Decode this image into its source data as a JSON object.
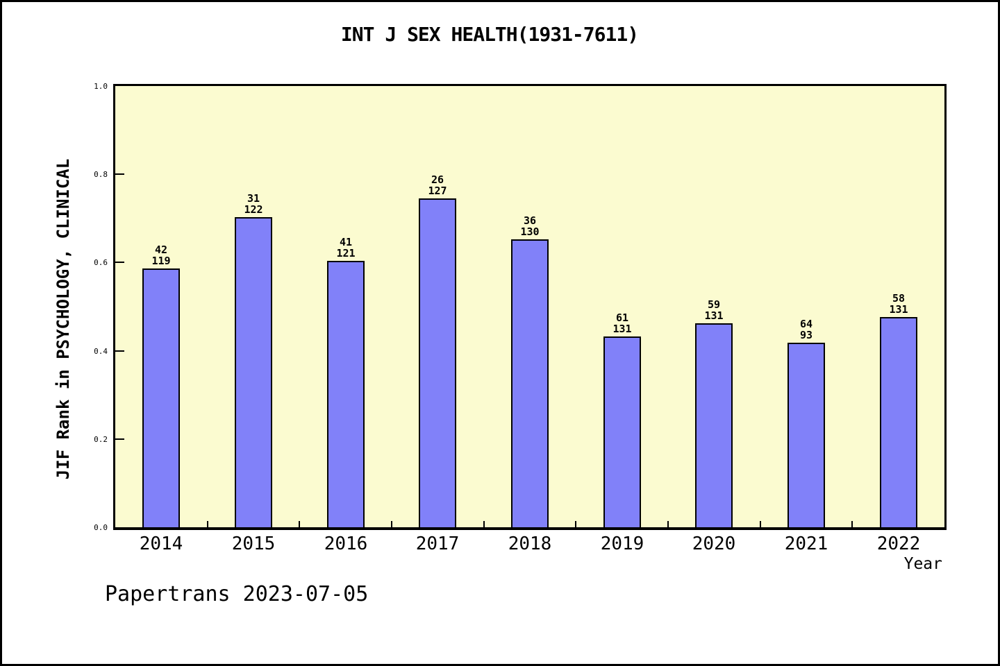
{
  "page": {
    "background_color": "#ffffff",
    "frame_color": "#000000"
  },
  "chart_data": {
    "type": "bar",
    "title": "INT J SEX HEALTH(1931-7611)",
    "xlabel": "Year",
    "ylabel": "JIF Rank in PSYCHOLOGY, CLINICAL",
    "footer": "Papertrans 2023-07-05",
    "ylim": [
      0.0,
      1.0
    ],
    "ytick_values": [
      0.0,
      0.2,
      0.4,
      0.6,
      0.8,
      1.0
    ],
    "ytick_labels": [
      "0.0",
      "0.2",
      "0.4",
      "0.6",
      "0.8",
      "1.0"
    ],
    "grid": false,
    "legend": "none",
    "plot_background": "#fbfbd0",
    "bar_fill": "#8181f9",
    "bar_border": "#000000",
    "categories": [
      "2014",
      "2015",
      "2016",
      "2017",
      "2018",
      "2019",
      "2020",
      "2021",
      "2022"
    ],
    "bars": [
      {
        "year": "2014",
        "rank": 42,
        "total": 119,
        "value": 0.587
      },
      {
        "year": "2015",
        "rank": 31,
        "total": 122,
        "value": 0.703
      },
      {
        "year": "2016",
        "rank": 41,
        "total": 121,
        "value": 0.604
      },
      {
        "year": "2017",
        "rank": 26,
        "total": 127,
        "value": 0.746
      },
      {
        "year": "2018",
        "rank": 36,
        "total": 130,
        "value": 0.653
      },
      {
        "year": "2019",
        "rank": 61,
        "total": 131,
        "value": 0.433
      },
      {
        "year": "2020",
        "rank": 59,
        "total": 131,
        "value": 0.463
      },
      {
        "year": "2021",
        "rank": 64,
        "total": 93,
        "value": 0.419
      },
      {
        "year": "2022",
        "rank": 58,
        "total": 131,
        "value": 0.477
      }
    ],
    "bar_label_format": "rank newline total"
  }
}
